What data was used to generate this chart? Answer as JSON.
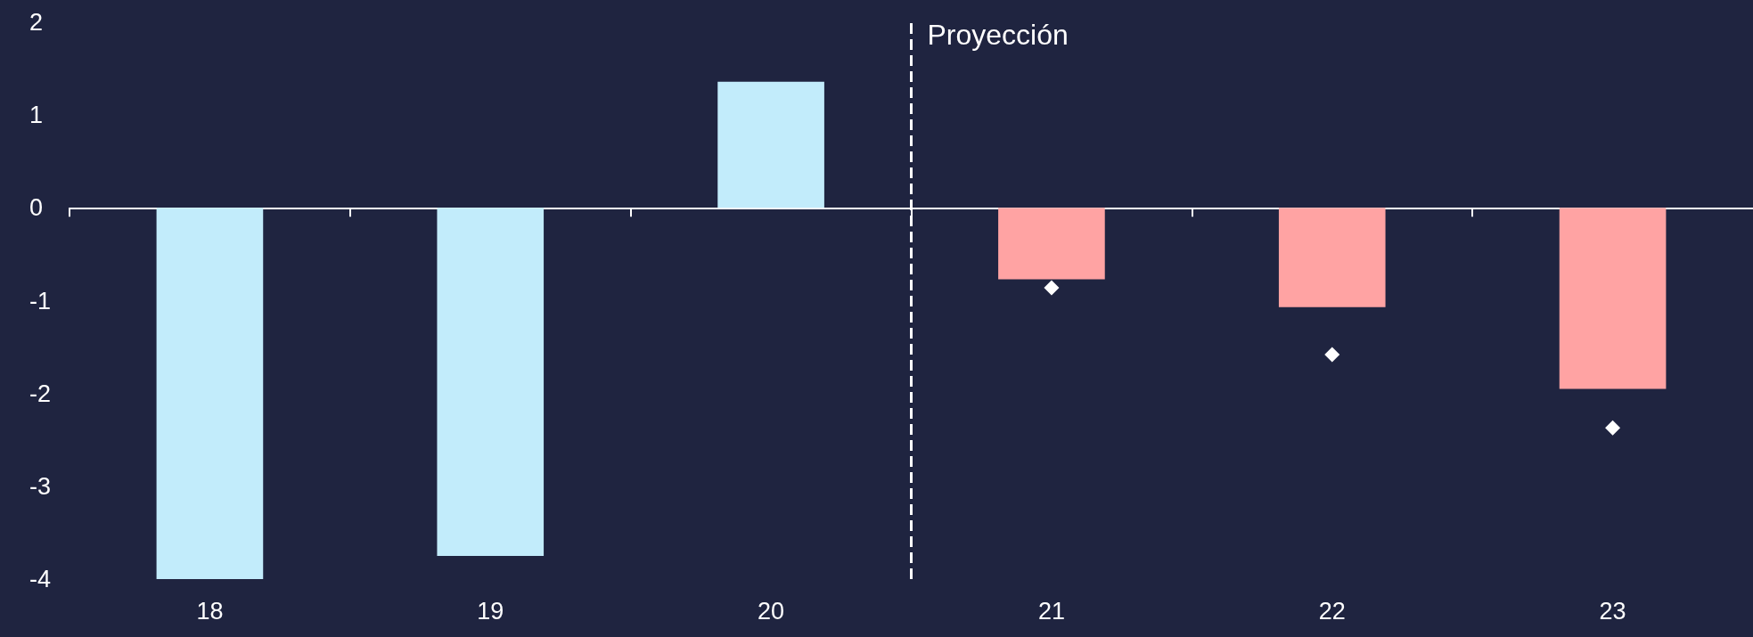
{
  "chart_data": {
    "type": "bar",
    "x": [
      18,
      19,
      20,
      21,
      22,
      23
    ],
    "xlim": [
      17.5,
      23.5
    ],
    "xticks": [
      {
        "value": 17.5,
        "label": null
      },
      18,
      {
        "value": 18.5,
        "label": null
      },
      19,
      {
        "value": 19.5,
        "label": null
      },
      20,
      {
        "value": 20.5,
        "label": null
      },
      21,
      {
        "value": 21.5,
        "label": null
      },
      22,
      {
        "value": 22.5,
        "label": null
      },
      23
    ],
    "ylim": [
      -4,
      2
    ],
    "yticks": [
      -4,
      -3,
      -2,
      -1,
      0,
      1,
      2
    ],
    "series": [
      {
        "values": [
          -4.0,
          -3.75,
          1.36,
          -0.77,
          -1.07,
          -1.95
        ],
        "colors": [
          "#c2ecfb",
          "#c2ecfb",
          "#c2ecfb",
          "#ffa3a3",
          "#ffa3a3",
          "#ffa3a3"
        ]
      },
      {
        "type": "scatter",
        "x": [
          21,
          22,
          23
        ],
        "values": [
          -0.86,
          -1.58,
          -2.37
        ],
        "color": "#ffffff",
        "marker": "diamond"
      }
    ],
    "ref_lines": [
      {
        "axis": "x",
        "value": 20.5,
        "label": "Proyección",
        "color": "#ffffff",
        "line_style": "dashed"
      }
    ]
  }
}
